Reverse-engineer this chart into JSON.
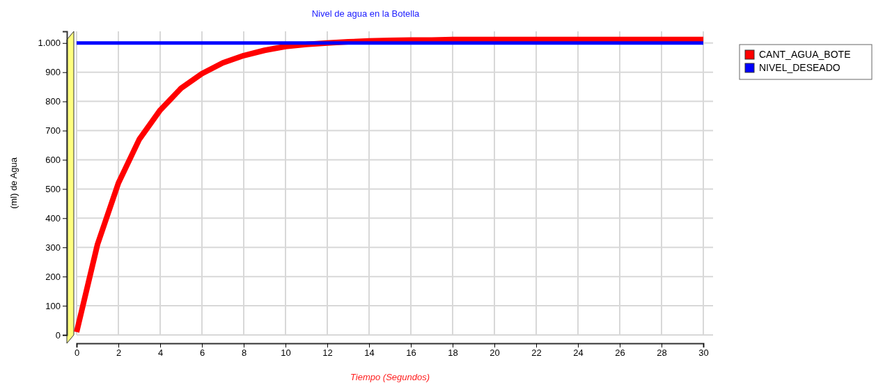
{
  "chart_data": {
    "type": "line",
    "title": "Nivel de agua en la Botella",
    "xlabel": "Tiempo (Segundos)",
    "ylabel": "(ml) de Agua",
    "x": [
      0,
      1,
      2,
      3,
      4,
      5,
      6,
      7,
      8,
      9,
      10,
      11,
      12,
      13,
      14,
      15,
      16,
      17,
      18,
      19,
      20,
      21,
      22,
      23,
      24,
      25,
      26,
      27,
      28,
      29,
      30
    ],
    "series": [
      {
        "name": "CANT_AGUA_BOTE",
        "color": "#ff0000",
        "values": [
          10,
          310,
          520,
          670,
          770,
          845,
          895,
          932,
          957,
          975,
          988,
          995,
          1000,
          1004,
          1007,
          1009,
          1010,
          1010,
          1012,
          1012,
          1012,
          1012,
          1012,
          1012,
          1012,
          1012,
          1012,
          1012,
          1012,
          1012,
          1012
        ]
      },
      {
        "name": "NIVEL_DESEADO",
        "color": "#0000ff",
        "values": [
          1000,
          1000,
          1000,
          1000,
          1000,
          1000,
          1000,
          1000,
          1000,
          1000,
          1000,
          1000,
          1000,
          1000,
          1000,
          1000,
          1000,
          1000,
          1000,
          1000,
          1000,
          1000,
          1000,
          1000,
          1000,
          1000,
          1000,
          1000,
          1000,
          1000,
          1000
        ]
      }
    ],
    "xlim": [
      0,
      30
    ],
    "xticks": [
      0,
      2,
      4,
      6,
      8,
      10,
      12,
      14,
      16,
      18,
      20,
      22,
      24,
      26,
      28,
      30
    ],
    "ylim": [
      0,
      1040
    ],
    "yticks": [
      0,
      100,
      200,
      300,
      400,
      500,
      600,
      700,
      800,
      900,
      {
        "value": 1000,
        "label": "1.000"
      }
    ],
    "grid": true,
    "legend": "top right",
    "marker": "none",
    "line_style": "solid"
  }
}
